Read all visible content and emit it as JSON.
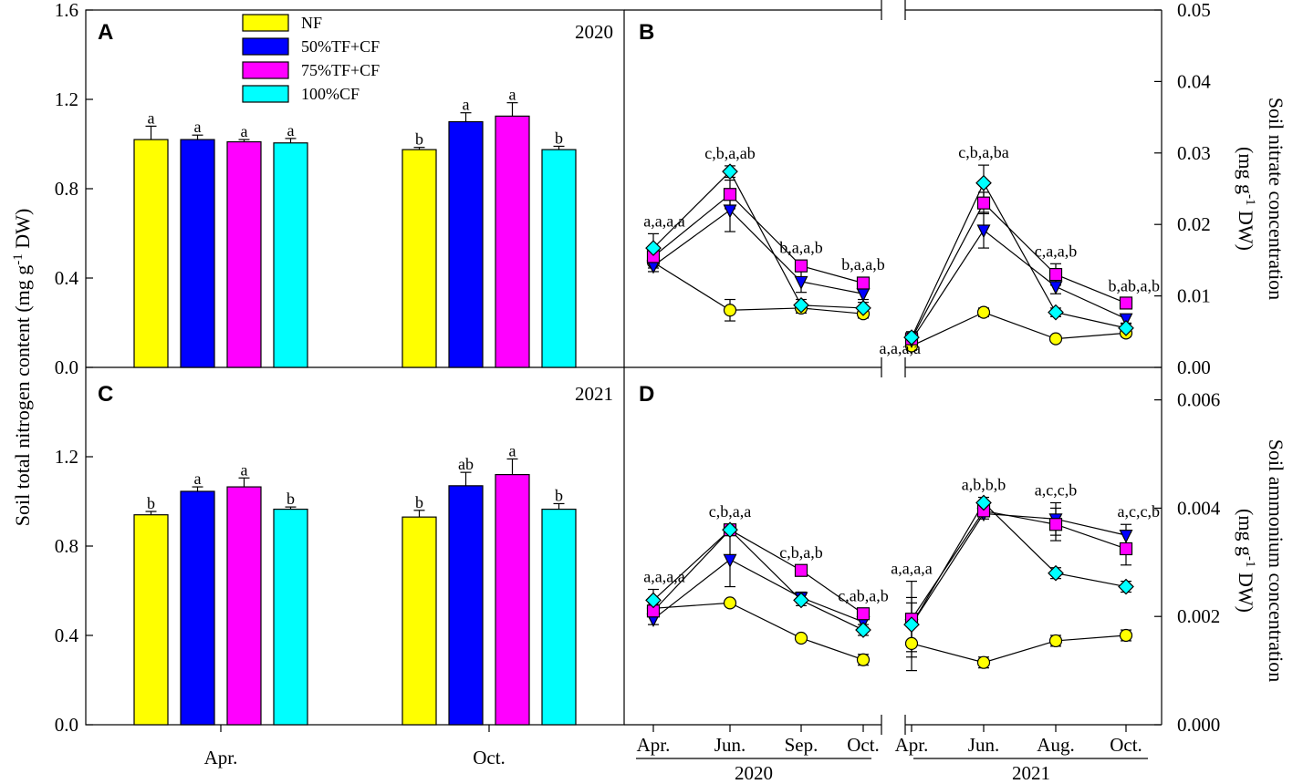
{
  "treatments": [
    {
      "name": "NF",
      "color": "#ffff00",
      "marker": "circle"
    },
    {
      "name": "50%TF+CF",
      "color": "#0000ff",
      "marker": "triangle-down"
    },
    {
      "name": "75%TF+CF",
      "color": "#ff00ff",
      "marker": "square"
    },
    {
      "name": "100%CF",
      "color": "#00ffff",
      "marker": "diamond"
    }
  ],
  "bar_axis": {
    "ylabel_main": "Soil total nitrogen content (mg g",
    "ylabel_sup": "-1",
    "ylabel_end": " DW)",
    "ylim": [
      0,
      1.6
    ],
    "ticks": [
      "0.0",
      "0.4",
      "0.8",
      "1.2",
      "1.6"
    ],
    "ticks_lower": [
      "0.0",
      "0.4",
      "0.8",
      "1.2"
    ]
  },
  "nitrate_axis": {
    "label_line1": "Soil nitrate concentration",
    "label_line2_a": "(mg g",
    "label_line2_sup": "-1",
    "label_line2_b": " DW)",
    "ylim": [
      0,
      0.05
    ],
    "ticks": [
      "0.00",
      "0.01",
      "0.02",
      "0.03",
      "0.04",
      "0.05"
    ]
  },
  "ammonium_axis": {
    "label_line1": "Soil ammonium concentration",
    "label_line2_a": "(mg g",
    "label_line2_sup": "-1",
    "label_line2_b": " DW)",
    "ylim": [
      0,
      0.0066
    ],
    "ticks": [
      "0.000",
      "0.002",
      "0.004",
      "0.006"
    ]
  },
  "x_groups": {
    "left_year": "2020",
    "right_year": "2021",
    "left_months": [
      "Apr.",
      "Jun.",
      "Sep.",
      "Oct."
    ],
    "right_months": [
      "Apr.",
      "Jun.",
      "Aug.",
      "Oct."
    ]
  },
  "chart_data": [
    {
      "panel": "A",
      "type": "bar",
      "year_label": "2020",
      "categories": [
        "Apr.",
        "Oct."
      ],
      "ylabel": "Soil total nitrogen content (mg g-1 DW)",
      "ylim": [
        0,
        1.6
      ],
      "series": [
        {
          "name": "NF",
          "values": [
            1.02,
            0.975
          ],
          "errors": [
            0.06,
            0.01
          ],
          "letters": [
            "a",
            "b"
          ]
        },
        {
          "name": "50%TF+CF",
          "values": [
            1.02,
            1.1
          ],
          "errors": [
            0.02,
            0.04
          ],
          "letters": [
            "a",
            "a"
          ]
        },
        {
          "name": "75%TF+CF",
          "values": [
            1.01,
            1.125
          ],
          "errors": [
            0.01,
            0.06
          ],
          "letters": [
            "a",
            "a"
          ]
        },
        {
          "name": "100%CF",
          "values": [
            1.005,
            0.975
          ],
          "errors": [
            0.02,
            0.015
          ],
          "letters": [
            "a",
            "b"
          ]
        }
      ]
    },
    {
      "panel": "C",
      "type": "bar",
      "year_label": "2021",
      "categories": [
        "Apr.",
        "Oct."
      ],
      "ylabel": "Soil total nitrogen content (mg g-1 DW)",
      "ylim": [
        0,
        1.6
      ],
      "series": [
        {
          "name": "NF",
          "values": [
            0.94,
            0.93
          ],
          "errors": [
            0.015,
            0.03
          ],
          "letters": [
            "b",
            "b"
          ]
        },
        {
          "name": "50%TF+CF",
          "values": [
            1.045,
            1.07
          ],
          "errors": [
            0.02,
            0.06
          ],
          "letters": [
            "a",
            "ab"
          ]
        },
        {
          "name": "75%TF+CF",
          "values": [
            1.065,
            1.12
          ],
          "errors": [
            0.04,
            0.07
          ],
          "letters": [
            "a",
            "a"
          ]
        },
        {
          "name": "100%CF",
          "values": [
            0.965,
            0.965
          ],
          "errors": [
            0.01,
            0.025
          ],
          "letters": [
            "b",
            "b"
          ]
        }
      ]
    },
    {
      "panel": "B",
      "type": "line",
      "ylabel": "Soil nitrate concentration (mg g-1 DW)",
      "ylim": [
        0,
        0.05
      ],
      "groups": [
        {
          "year": "2020",
          "x": [
            "Apr.",
            "Jun.",
            "Sep.",
            "Oct."
          ],
          "letters": [
            "a,a,a,a",
            "c,b,a,ab",
            "b,a,a,b",
            "b,a,a,b"
          ],
          "series": [
            {
              "name": "NF",
              "values": [
                0.0147,
                0.008,
                0.0083,
                0.0075
              ],
              "errors": [
                0.0008,
                0.0015,
                0.0007,
                0.0006
              ]
            },
            {
              "name": "50%TF+CF",
              "values": [
                0.0142,
                0.022,
                0.012,
                0.0103
              ],
              "errors": [
                0.0008,
                0.003,
                0.0015,
                0.0008
              ]
            },
            {
              "name": "75%TF+CF",
              "values": [
                0.0155,
                0.0242,
                0.0142,
                0.0118
              ],
              "errors": [
                0.001,
                0.002,
                0.0008,
                0.0008
              ]
            },
            {
              "name": "100%CF",
              "values": [
                0.0167,
                0.0274,
                0.0087,
                0.0083
              ],
              "errors": [
                0.002,
                0.0008,
                0.0008,
                0.0008
              ]
            }
          ]
        },
        {
          "year": "2021",
          "x": [
            "Apr.",
            "Jun.",
            "Aug.",
            "Oct."
          ],
          "letters": [
            "a,a,a,a",
            "c,b,a,ba",
            "c,a,a,b",
            "b,ab,a,b"
          ],
          "series": [
            {
              "name": "NF",
              "values": [
                0.003,
                0.0077,
                0.004,
                0.0048
              ],
              "errors": [
                0.0006,
                0.0006,
                0.0004,
                0.0005
              ]
            },
            {
              "name": "50%TF+CF",
              "values": [
                0.0038,
                0.0192,
                0.0113,
                0.0068
              ],
              "errors": [
                0.0006,
                0.0025,
                0.001,
                0.0006
              ]
            },
            {
              "name": "75%TF+CF",
              "values": [
                0.004,
                0.023,
                0.013,
                0.009
              ],
              "errors": [
                0.0006,
                0.0015,
                0.0015,
                0.0006
              ]
            },
            {
              "name": "100%CF",
              "values": [
                0.0042,
                0.0258,
                0.0077,
                0.0055
              ],
              "errors": [
                0.0008,
                0.0025,
                0.0006,
                0.0006
              ]
            }
          ]
        }
      ]
    },
    {
      "panel": "D",
      "type": "line",
      "ylabel": "Soil ammonium concentration (mg g-1 DW)",
      "ylim": [
        0,
        0.0066
      ],
      "groups": [
        {
          "year": "2020",
          "x": [
            "Apr.",
            "Jun.",
            "Sep.",
            "Oct."
          ],
          "letters": [
            "a,a,a,a",
            "c,b,a,a",
            "c,b,a,b",
            "c,ab,a,b"
          ],
          "series": [
            {
              "name": "NF",
              "values": [
                0.00215,
                0.00225,
                0.0016,
                0.0012
              ],
              "errors": [
                0.0001,
                5e-05,
                5e-05,
                0.0001
              ]
            },
            {
              "name": "50%TF+CF",
              "values": [
                0.00195,
                0.00305,
                0.00235,
                0.0019
              ],
              "errors": [
                0.0001,
                0.0005,
                0.0001,
                0.0001
              ]
            },
            {
              "name": "75%TF+CF",
              "values": [
                0.0021,
                0.0036,
                0.00285,
                0.00205
              ],
              "errors": [
                0.0001,
                0.0001,
                0.0001,
                0.0001
              ]
            },
            {
              "name": "100%CF",
              "values": [
                0.0023,
                0.0036,
                0.0023,
                0.00175
              ],
              "errors": [
                0.0002,
                0.0001,
                0.0001,
                0.0001
              ]
            }
          ]
        },
        {
          "year": "2021",
          "x": [
            "Apr.",
            "Jun.",
            "Aug.",
            "Oct."
          ],
          "letters": [
            "a,a,a,a",
            "a,b,b,b",
            "a,c,c,b",
            "a,c,c,b"
          ],
          "series": [
            {
              "name": "NF",
              "values": [
                0.0015,
                0.00115,
                0.00155,
                0.00165
              ],
              "errors": [
                0.0005,
                0.0001,
                0.0001,
                0.0001
              ]
            },
            {
              "name": "50%TF+CF",
              "values": [
                0.00185,
                0.0039,
                0.0038,
                0.0035
              ],
              "errors": [
                0.0005,
                0.0001,
                0.0003,
                0.0002
              ]
            },
            {
              "name": "75%TF+CF",
              "values": [
                0.00195,
                0.00395,
                0.0037,
                0.00325
              ],
              "errors": [
                0.0007,
                0.0001,
                0.0003,
                0.0003
              ]
            },
            {
              "name": "100%CF",
              "values": [
                0.00185,
                0.0041,
                0.0028,
                0.00255
              ],
              "errors": [
                0.0004,
                0.0001,
                0.0001,
                0.0001
              ]
            }
          ]
        }
      ]
    }
  ]
}
